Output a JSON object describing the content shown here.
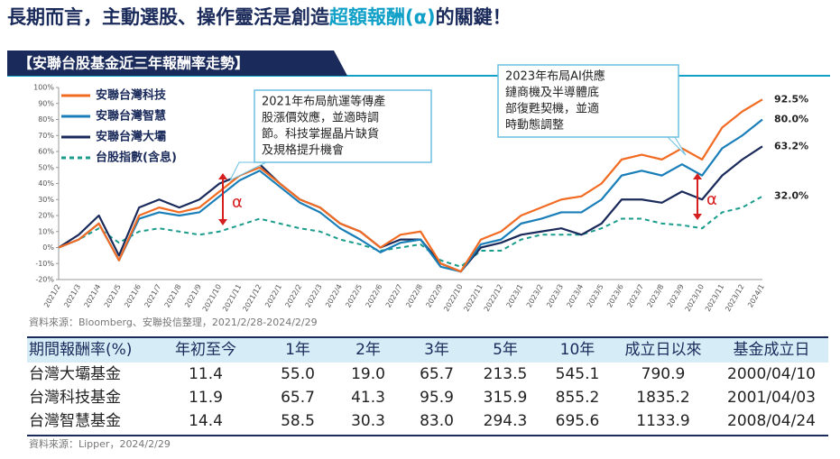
{
  "header": {
    "title_prefix": "長期而言，主動選股、操作靈活是創造",
    "title_highlight": "超額報酬(α)",
    "title_suffix": "的關鍵！",
    "banner": "【安聯台股基金近三年報酬率走勢】"
  },
  "chart_data": {
    "type": "line",
    "categories": [
      "2021/2",
      "2021/3",
      "2021/4",
      "2021/5",
      "2021/6",
      "2021/7",
      "2021/8",
      "2021/9",
      "2021/10",
      "2021/11",
      "2021/12",
      "2022/1",
      "2022/2",
      "2022/3",
      "2022/4",
      "2022/5",
      "2022/6",
      "2022/7",
      "2022/8",
      "2022/9",
      "2022/10",
      "2022/11",
      "2022/12",
      "2023/1",
      "2023/2",
      "2023/3",
      "2023/4",
      "2023/5",
      "2023/6",
      "2023/7",
      "2023/8",
      "2023/9",
      "2023/10",
      "2023/11",
      "2023/12",
      "2024/1"
    ],
    "series": [
      {
        "name": "安聯台灣科技",
        "color": "#f26b22",
        "dashed": false,
        "values": [
          0,
          5,
          15,
          -8,
          20,
          25,
          22,
          25,
          35,
          45,
          50,
          40,
          30,
          25,
          15,
          10,
          0,
          8,
          10,
          -10,
          -15,
          5,
          10,
          20,
          25,
          30,
          32,
          40,
          55,
          58,
          55,
          62,
          55,
          75,
          85,
          92.5
        ],
        "value_label": "92.5%"
      },
      {
        "name": "安聯台灣智慧",
        "color": "#1a7fb8",
        "dashed": false,
        "values": [
          0,
          5,
          15,
          -8,
          18,
          22,
          20,
          22,
          32,
          42,
          48,
          38,
          28,
          22,
          12,
          5,
          -3,
          3,
          5,
          -12,
          -15,
          2,
          5,
          15,
          18,
          22,
          22,
          30,
          45,
          48,
          45,
          52,
          45,
          62,
          70,
          80.0
        ],
        "value_label": "80.0%"
      },
      {
        "name": "安聯台灣大壩",
        "color": "#1a2a5a",
        "dashed": false,
        "values": [
          0,
          8,
          20,
          -5,
          25,
          30,
          25,
          30,
          40,
          45,
          52,
          40,
          30,
          25,
          15,
          10,
          0,
          5,
          5,
          -10,
          -15,
          0,
          3,
          8,
          10,
          12,
          8,
          15,
          30,
          30,
          28,
          35,
          30,
          45,
          55,
          63.2
        ],
        "value_label": "63.2%"
      },
      {
        "name": "台股指數(含息)",
        "color": "#1a9c8c",
        "dashed": true,
        "values": [
          0,
          5,
          12,
          3,
          10,
          12,
          10,
          8,
          10,
          14,
          18,
          15,
          12,
          10,
          5,
          2,
          -2,
          0,
          2,
          -8,
          -12,
          -2,
          -2,
          5,
          8,
          8,
          8,
          12,
          18,
          18,
          15,
          14,
          12,
          22,
          25,
          32.0
        ],
        "value_label": "32.0%"
      }
    ],
    "ylim": [
      -20,
      100
    ],
    "yticks": [
      {
        "value": -20,
        "label": "-20%"
      },
      {
        "value": -10,
        "label": "-10%"
      },
      {
        "value": 0,
        "label": "0%"
      },
      {
        "value": 10,
        "label": "10%"
      },
      {
        "value": 20,
        "label": "20%"
      },
      {
        "value": 30,
        "label": "30%"
      },
      {
        "value": 40,
        "label": "40%"
      },
      {
        "value": 50,
        "label": "50%"
      },
      {
        "value": 60,
        "label": "60%"
      },
      {
        "value": 70,
        "label": "70%"
      },
      {
        "value": 80,
        "label": "80%"
      },
      {
        "value": 90,
        "label": "90%"
      },
      {
        "value": 100,
        "label": "100%"
      }
    ],
    "annotations": [
      [
        "2021年布局航運等傳產",
        "股漲價效應，並適時調",
        "節。科技掌握晶片缺貨",
        "及規格提升機會"
      ],
      [
        "2023年布局AI供應",
        "鏈商機及半導體底",
        "部復甦契機，並適",
        "時動態調整"
      ]
    ],
    "alpha_labels": [
      "α",
      "α"
    ],
    "source": "資料來源：Bloomberg、安聯投信整理，2021/2/28-2024/2/29"
  },
  "table": {
    "header": [
      "期間報酬率(%)",
      "年初至今",
      "1年",
      "2年",
      "3年",
      "5年",
      "10年",
      "成立日以來",
      "基金成立日"
    ],
    "rows": [
      [
        "台灣大壩基金",
        "11.4",
        "55.0",
        "19.0",
        "65.7",
        "213.5",
        "545.1",
        "790.9",
        "2000/04/10"
      ],
      [
        "台灣科技基金",
        "11.9",
        "65.7",
        "41.3",
        "95.9",
        "315.9",
        "855.2",
        "1835.2",
        "2001/04/03"
      ],
      [
        "台灣智慧基金",
        "14.4",
        "58.5",
        "30.3",
        "83.0",
        "294.3",
        "695.6",
        "1133.9",
        "2008/04/24"
      ]
    ],
    "source": "資料來源：Lipper，2024/2/29"
  }
}
